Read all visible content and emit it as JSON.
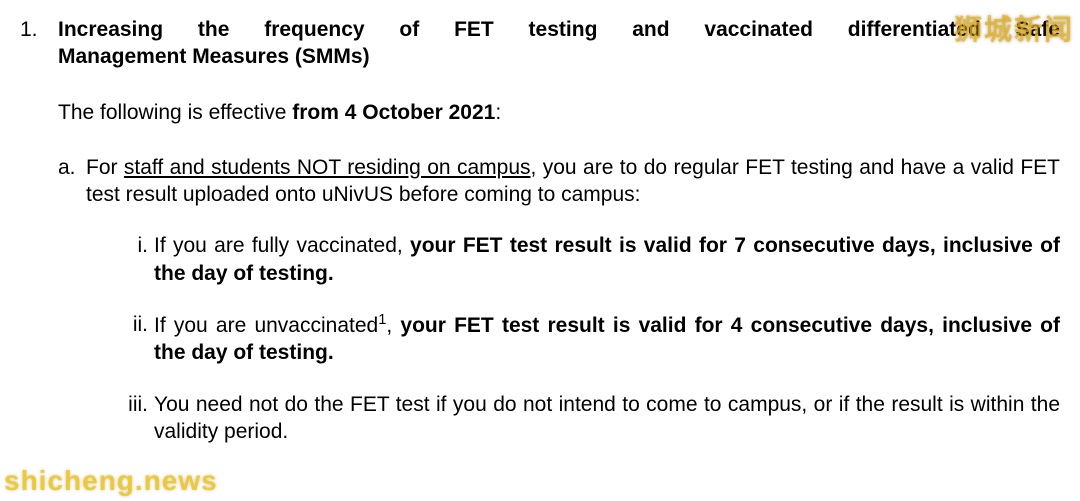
{
  "item": {
    "number": "1.",
    "title_line1": "Increasing the frequency of FET testing and vaccinated differentiated Safe",
    "title_line2": "Management Measures (SMMs)",
    "intro_pre": "The following is effective ",
    "intro_bold": "from 4 October 2021",
    "intro_post": ":",
    "a": {
      "marker": "a.",
      "pre": "For ",
      "underline": "staff and students NOT residing on campus",
      "post": ", you are to do regular FET testing and have a valid FET test result uploaded onto uNivUS before coming to campus:"
    },
    "i": {
      "marker": "i.",
      "pre": "If you are fully vaccinated, ",
      "bold": "your FET test result is valid for 7 consecutive days, inclusive of the day of testing."
    },
    "ii": {
      "marker": "ii.",
      "pre": "If you are unvaccinated",
      "sup": "1",
      "mid": ", ",
      "bold": "your FET test result is valid for 4 consecutive days, inclusive of the day of testing."
    },
    "iii": {
      "marker": "iii.",
      "text": "You need not do the FET test if you do not intend to come to campus, or if the result is within the validity period."
    }
  },
  "watermark": {
    "top": "狮城新闻",
    "bottom": "shicheng.news"
  },
  "colors": {
    "text": "#000000",
    "background": "#ffffff",
    "watermark": "#e6b41e"
  }
}
